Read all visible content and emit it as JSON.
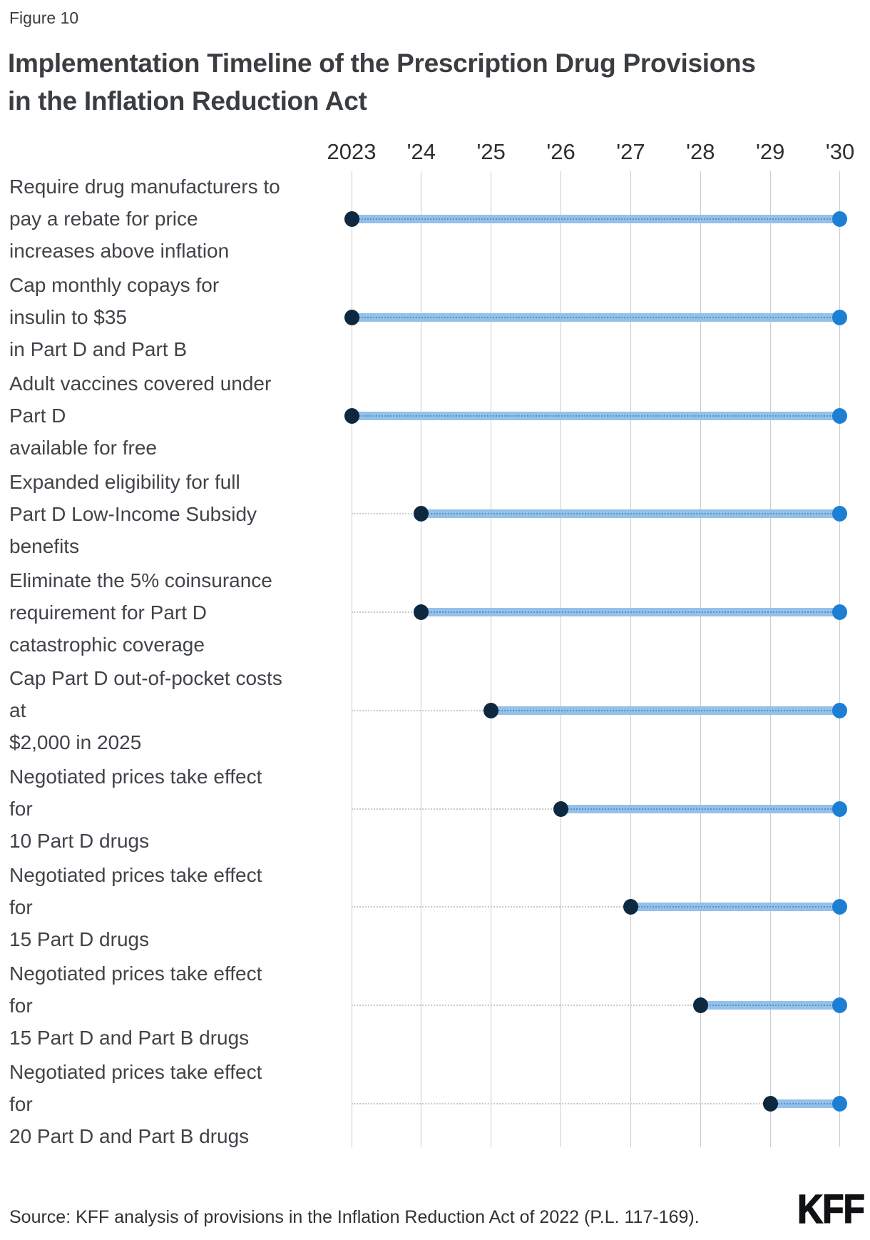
{
  "figure_label": "Figure 10",
  "title_lines": [
    "Implementation Timeline of the Prescription Drug Provisions",
    "in the Inflation Reduction Act"
  ],
  "source": "Source: KFF analysis of provisions in the Inflation Reduction Act of 2022 (P.L. 117-169).",
  "logo": "KFF",
  "chart_data": {
    "type": "gantt",
    "title": "Implementation Timeline of the Prescription Drug Provisions in the Inflation Reduction Act",
    "x_axis": {
      "ticks": [
        {
          "label": "2023",
          "year": 2023
        },
        {
          "label": "'24",
          "year": 2024
        },
        {
          "label": "'25",
          "year": 2025
        },
        {
          "label": "'26",
          "year": 2026
        },
        {
          "label": "'27",
          "year": 2027
        },
        {
          "label": "'28",
          "year": 2028
        },
        {
          "label": "'29",
          "year": 2029
        },
        {
          "label": "'30",
          "year": 2030
        }
      ],
      "xlim": [
        2023,
        2030
      ],
      "grid": true
    },
    "rows": [
      {
        "label_lines": [
          "Require drug manufacturers to",
          "pay a rebate for price",
          "increases above inflation"
        ],
        "start_year": 2023,
        "end_year": 2030
      },
      {
        "label_lines": [
          "Cap monthly copays for",
          "insulin to $35",
          "in Part D and Part B"
        ],
        "start_year": 2023,
        "end_year": 2030
      },
      {
        "label_lines": [
          "Adult vaccines covered under",
          "Part D",
          "available for free"
        ],
        "start_year": 2023,
        "end_year": 2030
      },
      {
        "label_lines": [
          "Expanded eligibility for full",
          "Part D Low-Income Subsidy",
          "benefits"
        ],
        "start_year": 2024,
        "end_year": 2030
      },
      {
        "label_lines": [
          "Eliminate the 5% coinsurance",
          "requirement for Part D",
          "catastrophic coverage"
        ],
        "start_year": 2024,
        "end_year": 2030
      },
      {
        "label_lines": [
          "Cap Part D out-of-pocket costs",
          "at",
          "$2,000 in 2025"
        ],
        "start_year": 2025,
        "end_year": 2030
      },
      {
        "label_lines": [
          "Negotiated prices take effect",
          "for",
          "10 Part D drugs"
        ],
        "start_year": 2026,
        "end_year": 2030
      },
      {
        "label_lines": [
          "Negotiated prices take effect",
          "for",
          "15 Part D drugs"
        ],
        "start_year": 2027,
        "end_year": 2030
      },
      {
        "label_lines": [
          "Negotiated prices take effect",
          "for",
          "15 Part D and Part B drugs"
        ],
        "start_year": 2028,
        "end_year": 2030
      },
      {
        "label_lines": [
          "Negotiated prices take effect",
          "for",
          "20 Part D and Part B drugs"
        ],
        "start_year": 2029,
        "end_year": 2030
      }
    ],
    "colors": {
      "bar": "#94c1e9",
      "bar_inner_dotted": "#2b6aad",
      "start_marker": "#0e2840",
      "end_marker": "#1d7fd4",
      "gridline": "#cccccc",
      "leader_dotted": "#c9c9c9"
    }
  }
}
